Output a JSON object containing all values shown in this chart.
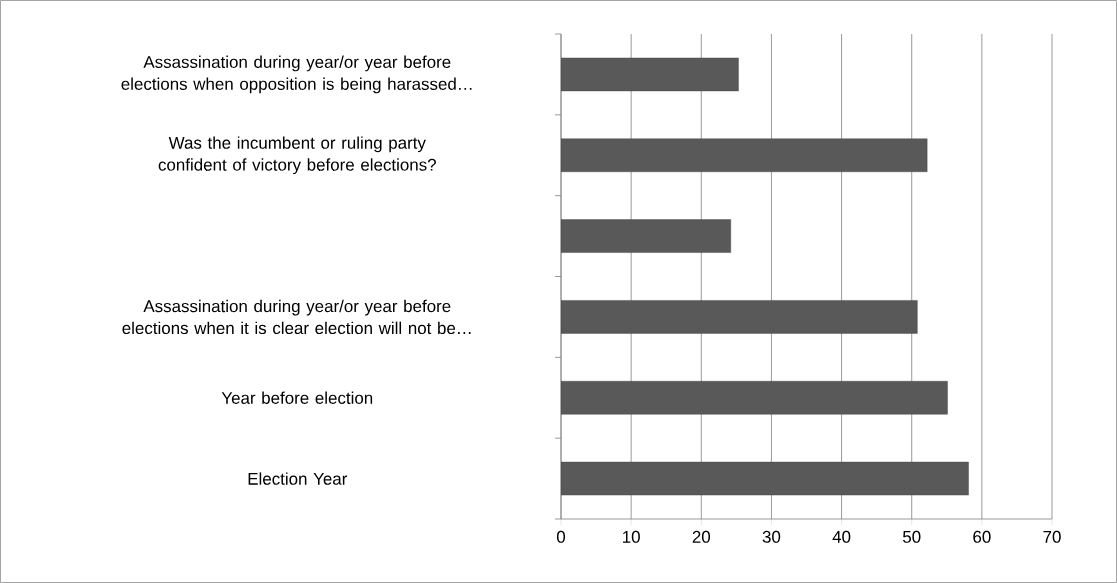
{
  "chart_data": {
    "type": "bar",
    "orientation": "horizontal",
    "categories": [
      "Assassination during year/or year before elections when opposition is being harassed…",
      "Was the incumbent or ruling party confident of victory before elections?",
      null,
      "Assassination during year/or year before elections when it is clear election will not be…",
      "Year before election",
      "Election Year"
    ],
    "values": [
      25.3,
      52.2,
      24.2,
      50.8,
      55.1,
      58.1
    ],
    "color": "#595959",
    "xlim": [
      0,
      70
    ],
    "xticks": [
      0,
      10,
      20,
      30,
      40,
      50,
      60,
      70
    ],
    "grid": "x"
  }
}
